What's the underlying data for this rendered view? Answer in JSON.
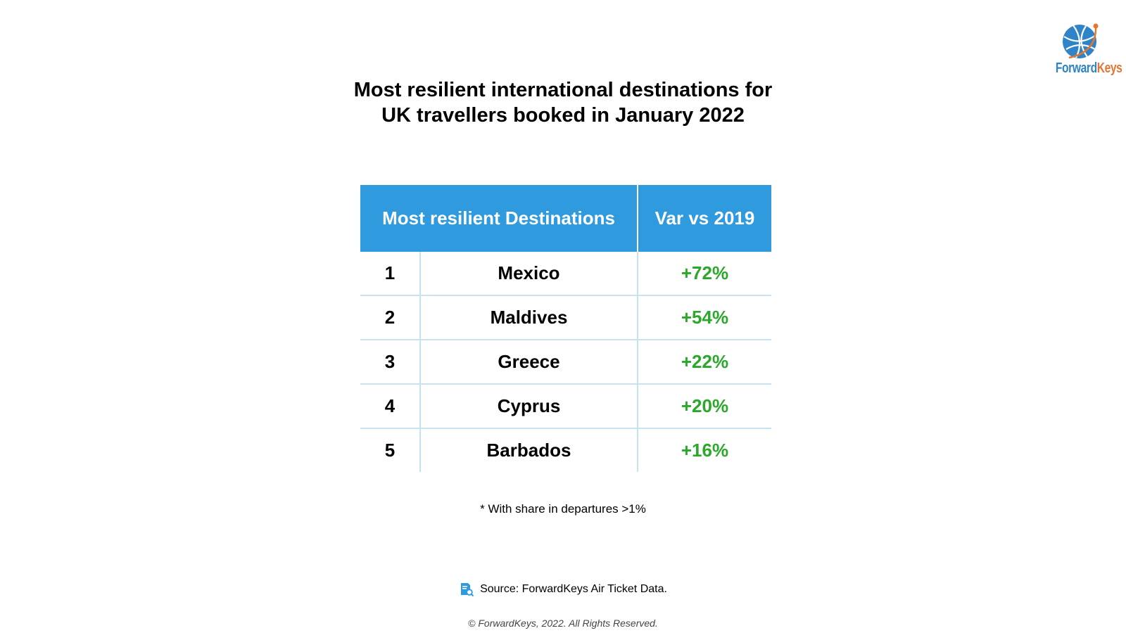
{
  "logo": {
    "icon": "globe-icon",
    "brand_part1": "Forward",
    "brand_part2": "Keys",
    "colors": {
      "blue": "#2f83c7",
      "orange": "#e57532"
    }
  },
  "title": {
    "line1": "Most resilient international destinations for",
    "line2": "UK travellers booked in January 2022"
  },
  "table": {
    "headers": {
      "destinations": "Most resilient Destinations",
      "variation": "Var vs 2019"
    },
    "rows": [
      {
        "rank": "1",
        "destination": "Mexico",
        "variation": "+72%"
      },
      {
        "rank": "2",
        "destination": "Maldives",
        "variation": "+54%"
      },
      {
        "rank": "3",
        "destination": "Greece",
        "variation": "+22%"
      },
      {
        "rank": "4",
        "destination": "Cyprus",
        "variation": "+20%"
      },
      {
        "rank": "5",
        "destination": "Barbados",
        "variation": "+16%"
      }
    ],
    "colors": {
      "header_bg": "#2f9ade",
      "positive": "#2aa82a",
      "grid": "#c8e2f1"
    }
  },
  "footnote": "* With share in departures >1%",
  "source": {
    "icon": "document-search-icon",
    "text": "Source: ForwardKeys Air Ticket Data."
  },
  "copyright": "© ForwardKeys, 2022. All Rights Reserved."
}
